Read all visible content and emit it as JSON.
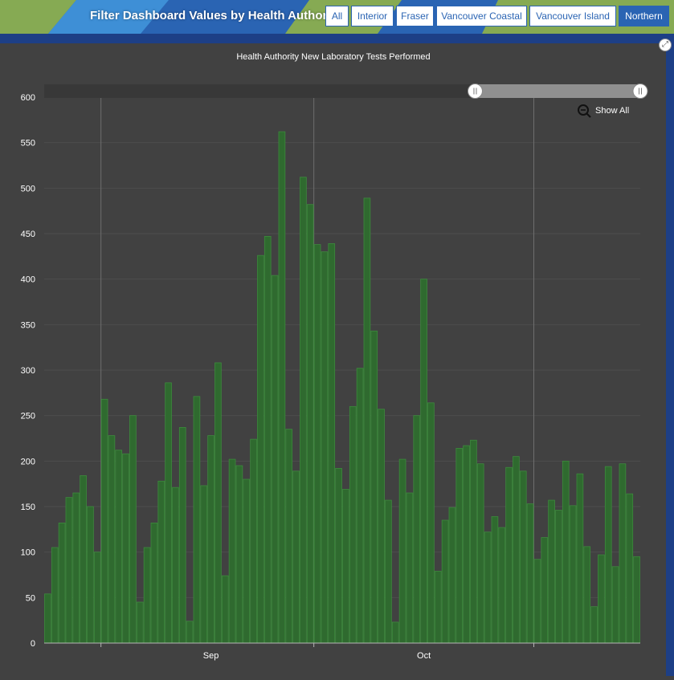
{
  "header": {
    "title": "Filter Dashboard Values by Health Authority:",
    "filters": [
      {
        "label": "All",
        "active": false
      },
      {
        "label": "Interior",
        "active": false
      },
      {
        "label": "Fraser",
        "active": false
      },
      {
        "label": "Vancouver Coastal",
        "active": false
      },
      {
        "label": "Vancouver Island",
        "active": false
      },
      {
        "label": "Northern",
        "active": true
      }
    ]
  },
  "zoom": {
    "show_all_label": "Show All",
    "icon": "zoom-out-icon",
    "range_start_fraction": 0.723,
    "range_end_fraction": 1.0
  },
  "colors": {
    "bar_fill": "#2f6a2f",
    "bar_stroke": "#3c8a3c",
    "background": "#414141",
    "scrollbar_track": "#383838",
    "scrollbar_selected": "#909090",
    "header_blue": "#2a64b3",
    "header_dark": "#1d3f86",
    "header_green": "#86aa53"
  },
  "chart_data": {
    "type": "bar",
    "title": "Health Authority New Laboratory Tests Performed",
    "xlabel": "",
    "ylabel": "",
    "ylim": [
      0,
      600
    ],
    "yticks": [
      0,
      50,
      100,
      150,
      200,
      250,
      300,
      350,
      400,
      450,
      500,
      550,
      600
    ],
    "x_tick_labels": [
      "Sep",
      "Oct"
    ],
    "grid": true,
    "series": [
      {
        "values": [
          54,
          105,
          132,
          160,
          165,
          184,
          150,
          100,
          268,
          228,
          212,
          208,
          250,
          45,
          105,
          132,
          178,
          286,
          171,
          237,
          24,
          271,
          173,
          228,
          308,
          74,
          202,
          195,
          180,
          224,
          426,
          447,
          404,
          562,
          235,
          189,
          512,
          482,
          438,
          430,
          439,
          192,
          169,
          260,
          302,
          489,
          343,
          257,
          157,
          23,
          202,
          165,
          250,
          400,
          264,
          79,
          135,
          149,
          214,
          217,
          223,
          197,
          122,
          139,
          127,
          193,
          205,
          189,
          153,
          92,
          116,
          157,
          146,
          200,
          151,
          186,
          106,
          40,
          97,
          194,
          84,
          197,
          164,
          95
        ]
      }
    ]
  }
}
